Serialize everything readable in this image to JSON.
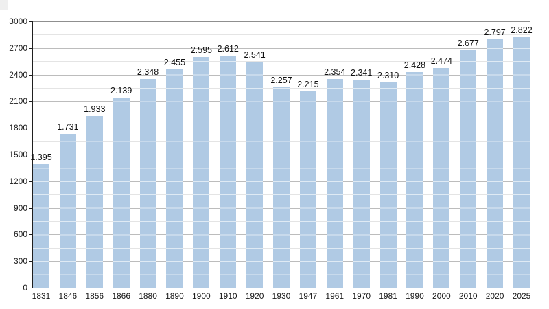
{
  "page": {
    "background_color": "#ffffff",
    "corner_artifact_color": "#efefef"
  },
  "chart_data": {
    "type": "bar",
    "title": "",
    "xlabel": "",
    "ylabel": "",
    "categories": [
      "1831",
      "1846",
      "1856",
      "1866",
      "1880",
      "1890",
      "1900",
      "1910",
      "1920",
      "1930",
      "1947",
      "1961",
      "1970",
      "1981",
      "1990",
      "2000",
      "2010",
      "2020",
      "2025"
    ],
    "values": [
      1395,
      1731,
      1933,
      2139,
      2348,
      2455,
      2595,
      2612,
      2541,
      2257,
      2215,
      2354,
      2341,
      2310,
      2428,
      2474,
      2677,
      2797,
      2822
    ],
    "bar_value_labels": [
      "1.395",
      "1.731",
      "1.933",
      "2.139",
      "2.348",
      "2.455",
      "2.595",
      "2.612",
      "2.541",
      "2.257",
      "2.215",
      "2.354",
      "2.341",
      "2.310",
      "2.428",
      "2.474",
      "2.677",
      "2.797",
      "2.822"
    ],
    "value_label_format": "thousands separated by period",
    "ylim": [
      0,
      3000
    ],
    "ytick_interval": 300,
    "ytick_labels": [
      "0",
      "300",
      "600",
      "900",
      "1200",
      "1500",
      "1800",
      "2100",
      "2400",
      "2700",
      "3000"
    ],
    "minor_gridline_interval": 150,
    "grid": "horizontal major and minor gridlines, appearing lighter where they cross bars",
    "legend_position": "none",
    "colors": {
      "bar_fill": "#b0cae4",
      "bar_gridline_overlay": "rgba(255,255,255,0.6)",
      "grid_major": "#bcbcbc",
      "grid_top": "#8f8f8f",
      "grid_minor": "#e4e4e4",
      "axis": "#1f1f1f",
      "text": "#1a1a1a"
    }
  }
}
